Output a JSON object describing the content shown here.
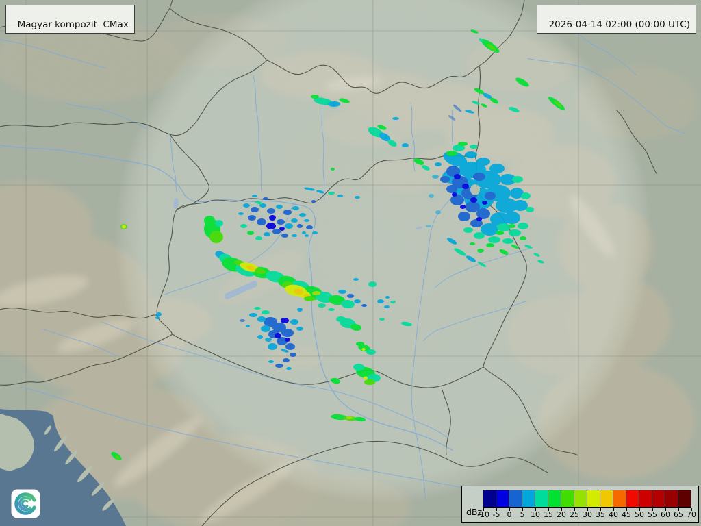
{
  "header": {
    "product_label": "Magyar kompozit  CMax",
    "timestamp_label": "2026-04-14 02:00 (00:00 UTC)"
  },
  "legend": {
    "unit_label": "dBz",
    "tick_labels": [
      "-10",
      "-5",
      "0",
      "5",
      "10",
      "15",
      "20",
      "25",
      "30",
      "35",
      "40",
      "45",
      "50",
      "55",
      "60",
      "65",
      "70"
    ],
    "colors": [
      "#00008f",
      "#0000e1",
      "#1663d2",
      "#00a7dc",
      "#00dc9b",
      "#00e132",
      "#41dc00",
      "#96e100",
      "#d2eb00",
      "#f0c800",
      "#f56900",
      "#f00a00",
      "#cd0000",
      "#b40000",
      "#960000",
      "#5f0000"
    ]
  },
  "map": {
    "base_land_color": "#a7b1a2",
    "coverage_tint_color": "#e9f0e9",
    "sea_color": "#5a7792",
    "lake_color": "#a3b9cf",
    "river_color": "#7fa9d8",
    "border_color": "#474a42",
    "terrain_color": "#c6b99f"
  },
  "logo": {
    "name": "hungaromet-spiral-logo",
    "background": "#fdfdfd",
    "gradient": [
      "#3b7fc4",
      "#2aa4a0",
      "#4bbf6e"
    ]
  }
}
